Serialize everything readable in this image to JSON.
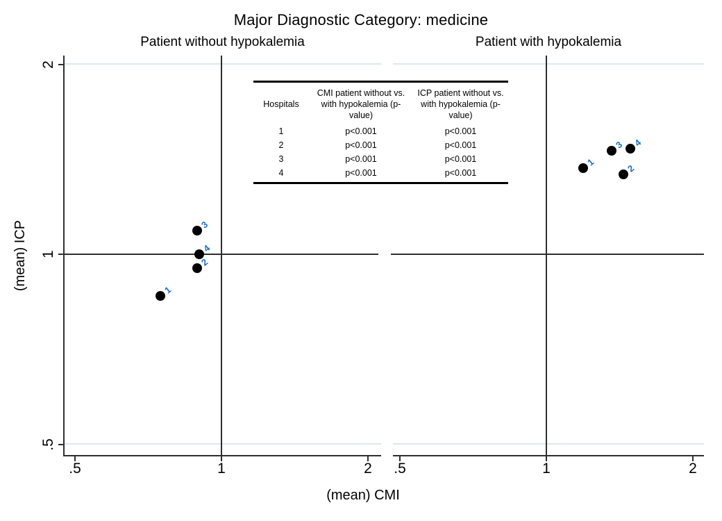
{
  "chart_data": {
    "type": "scatter",
    "title": "Major Diagnostic Category: medicine",
    "xlabel": "(mean) CMI",
    "ylabel": "(mean) ICP",
    "x_scale": "log",
    "y_scale": "log",
    "xlim": [
      0.45,
      2.15
    ],
    "ylim": [
      0.45,
      2.15
    ],
    "x_ticks": {
      "values": [
        0.5,
        1,
        2
      ],
      "labels": [
        ".5",
        "1",
        "2"
      ]
    },
    "y_ticks": {
      "values": [
        0.5,
        1,
        2
      ],
      "labels": [
        "2",
        "1",
        ".5"
      ],
      "values_top_to_bottom": [
        2,
        1,
        0.5
      ]
    },
    "reference_lines": {
      "x": 1,
      "y": 1
    },
    "grid": "on",
    "marker_color": "#000000",
    "marker_label_color": "#1b6fc2",
    "panels": [
      {
        "title": "Patient without hypokalemia",
        "points": [
          {
            "hospital": "1",
            "cmi": 0.75,
            "icp": 0.86
          },
          {
            "hospital": "2",
            "cmi": 0.89,
            "icp": 0.95
          },
          {
            "hospital": "3",
            "cmi": 0.89,
            "icp": 1.09
          },
          {
            "hospital": "4",
            "cmi": 0.9,
            "icp": 1.0
          }
        ]
      },
      {
        "title": "Patient with hypokalemia",
        "points": [
          {
            "hospital": "1",
            "cmi": 1.19,
            "icp": 1.37
          },
          {
            "hospital": "2",
            "cmi": 1.44,
            "icp": 1.34
          },
          {
            "hospital": "3",
            "cmi": 1.36,
            "icp": 1.46
          },
          {
            "hospital": "4",
            "cmi": 1.49,
            "icp": 1.47
          }
        ]
      }
    ]
  },
  "inset_table": {
    "headers": [
      "Hospitals",
      "CMI patient without vs. with hypokalemia (p-value)",
      "ICP patient without vs. with hypokalemia (p-value)"
    ],
    "rows": [
      [
        "1",
        "p<0.001",
        "p<0.001"
      ],
      [
        "2",
        "p<0.001",
        "p<0.001"
      ],
      [
        "3",
        "p<0.001",
        "p<0.001"
      ],
      [
        "4",
        "p<0.001",
        "p<0.001"
      ]
    ]
  }
}
